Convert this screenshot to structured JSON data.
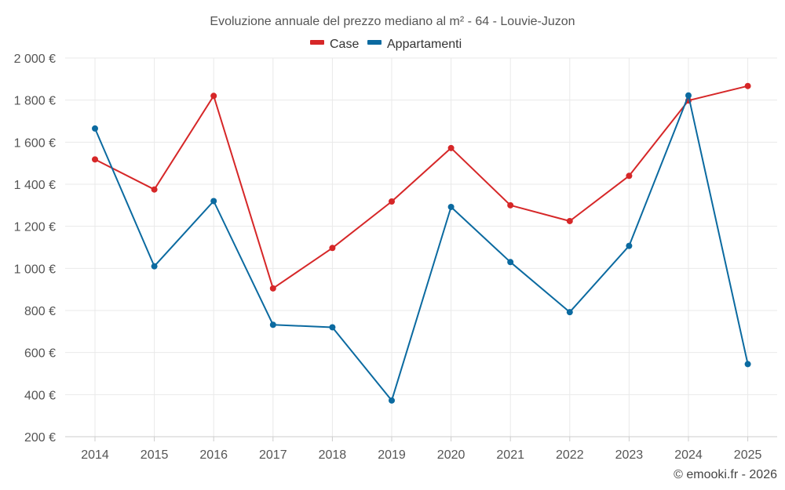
{
  "chart_data": {
    "type": "line",
    "title": "Evoluzione annuale del prezzo mediano al m² - 64 - Louvie-Juzon",
    "xlabel": "",
    "ylabel": "",
    "categories": [
      "2014",
      "2015",
      "2016",
      "2017",
      "2018",
      "2019",
      "2020",
      "2021",
      "2022",
      "2023",
      "2024",
      "2025"
    ],
    "ylim": [
      200,
      2000
    ],
    "yticks": [
      200,
      400,
      600,
      800,
      1000,
      1200,
      1400,
      1600,
      1800,
      2000
    ],
    "ytick_labels": [
      "200 €",
      "400 €",
      "600 €",
      "800 €",
      "1 000 €",
      "1 200 €",
      "1 400 €",
      "1 600 €",
      "1 800 €",
      "2 000 €"
    ],
    "grid": true,
    "legend_position": "top-center",
    "series": [
      {
        "name": "Case",
        "color": "#d62728",
        "values": [
          1518,
          1375,
          1820,
          905,
          1097,
          1318,
          1572,
          1300,
          1225,
          1440,
          1798,
          1867
        ]
      },
      {
        "name": "Appartamenti",
        "color": "#0b6aa0",
        "values": [
          1665,
          1010,
          1320,
          732,
          720,
          372,
          1292,
          1030,
          792,
          1107,
          1822,
          545
        ]
      }
    ]
  },
  "credit": "© emooki.fr - 2026"
}
